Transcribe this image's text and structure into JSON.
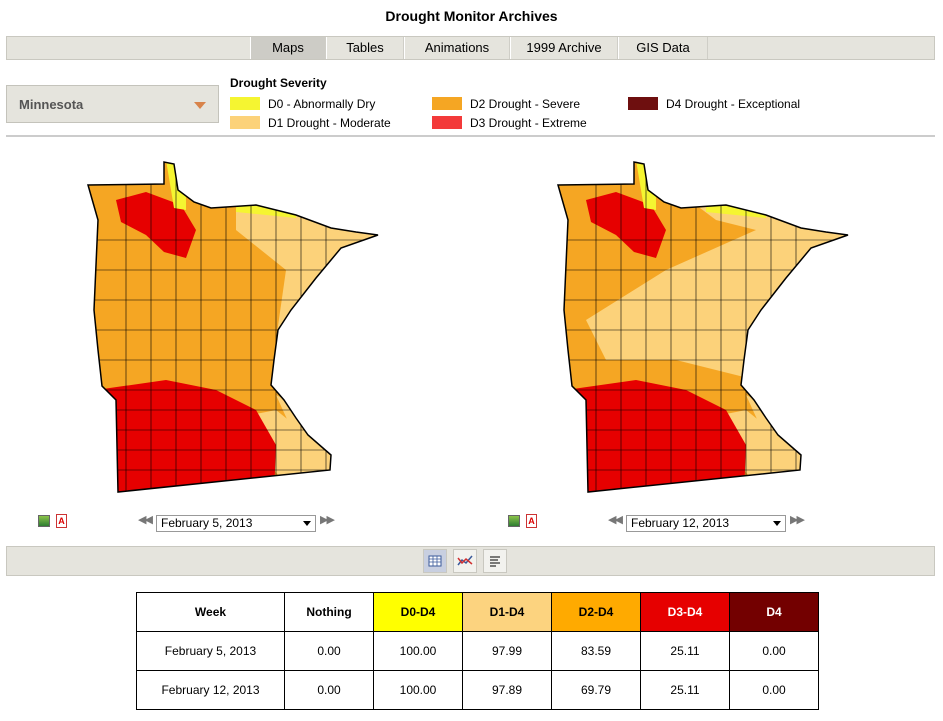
{
  "page_title": "Drought Monitor Archives",
  "tabs": [
    "Maps",
    "Tables",
    "Animations",
    "1999 Archive",
    "GIS Data"
  ],
  "active_tab": "Maps",
  "state_selector": {
    "value": "Minnesota"
  },
  "legend": {
    "title": "Drought Severity",
    "items": [
      {
        "label": "D0 - Abnormally Dry",
        "color": "#f5f531"
      },
      {
        "label": "D1 Drought - Moderate",
        "color": "#fcd27a"
      },
      {
        "label": "D2 Drought - Severe",
        "color": "#f5a623"
      },
      {
        "label": "D3 Drought - Extreme",
        "color": "#f33a3a"
      },
      {
        "label": "D4 Drought - Exceptional",
        "color": "#6e0f0f"
      }
    ]
  },
  "maps": [
    {
      "date": "February 5, 2013"
    },
    {
      "date": "February 12, 2013"
    }
  ],
  "table": {
    "headers": [
      "Week",
      "Nothing",
      "D0-D4",
      "D1-D4",
      "D2-D4",
      "D3-D4",
      "D4"
    ],
    "header_colors": [
      "#ffffff",
      "#ffffff",
      "#ffff00",
      "#fcd37f",
      "#ffaa00",
      "#e60000",
      "#730000"
    ],
    "rows": [
      [
        "February 5, 2013",
        "0.00",
        "100.00",
        "97.99",
        "83.59",
        "25.11",
        "0.00"
      ],
      [
        "February 12, 2013",
        "0.00",
        "100.00",
        "97.89",
        "69.79",
        "25.11",
        "0.00"
      ]
    ]
  },
  "icons": {
    "image": "image-icon",
    "pdf": "pdf-icon",
    "table_view": "table-icon",
    "chart_view": "chart-icon",
    "text_view": "text-icon"
  }
}
